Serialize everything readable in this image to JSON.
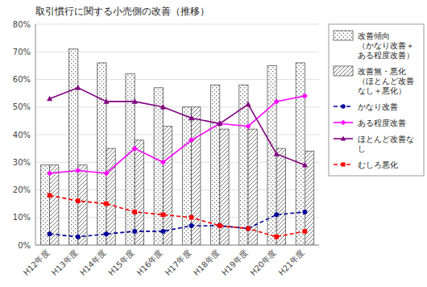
{
  "chart_data": {
    "type": "bar",
    "title": "取引慣行に関する小売側の改善（推移）",
    "categories": [
      "H12年度",
      "H13年度",
      "H14年度",
      "H15年度",
      "H16年度",
      "H17年度",
      "H18年度",
      "H19年度",
      "H20年度",
      "H21年度"
    ],
    "series": [
      {
        "name": "改善傾向\n（かなり改善＋\nある程度改善）",
        "type": "bar",
        "color": "#555555",
        "values": [
          29,
          71,
          66,
          62,
          57,
          50,
          58,
          58,
          65,
          66
        ]
      },
      {
        "name": "改善無・悪化\n（ほとんど改善\nなし＋悪化）",
        "type": "bar",
        "color": "#555555",
        "values": [
          29,
          29,
          35,
          38,
          43,
          50,
          42,
          42,
          35,
          34
        ]
      },
      {
        "name": "かなり改善",
        "type": "line",
        "color": "#000099",
        "marker": "circle",
        "line_style": "dashed",
        "values": [
          4,
          3,
          4,
          5,
          5,
          7,
          7,
          6,
          11,
          12
        ]
      },
      {
        "name": "ある程度改善",
        "type": "line",
        "color": "#FF00FF",
        "marker": "diamond",
        "line_style": "solid",
        "values": [
          26,
          27,
          26,
          35,
          30,
          38,
          44,
          43,
          52,
          54
        ]
      },
      {
        "name": "ほとんど改善な\nし",
        "type": "line",
        "color": "#800080",
        "marker": "triangle",
        "line_style": "solid",
        "values": [
          53,
          57,
          52,
          52,
          50,
          46,
          44,
          51,
          33,
          29
        ]
      },
      {
        "name": "むしろ悪化",
        "type": "line",
        "color": "#FF0000",
        "marker": "square",
        "line_style": "dashed",
        "values": [
          18,
          16,
          15,
          12,
          11,
          10,
          7,
          6,
          3,
          5
        ]
      }
    ],
    "ylim": [
      0,
      80
    ],
    "yticks": [
      {
        "value": 0,
        "label": "0%"
      },
      {
        "value": 10,
        "label": "10%"
      },
      {
        "value": 20,
        "label": "20%"
      },
      {
        "value": 30,
        "label": "30%"
      },
      {
        "value": 40,
        "label": "40%"
      },
      {
        "value": 50,
        "label": "50%"
      },
      {
        "value": 60,
        "label": "60%"
      },
      {
        "value": 70,
        "label": "70%"
      },
      {
        "value": 80,
        "label": "80%"
      }
    ],
    "grid": true,
    "legend": "right"
  }
}
